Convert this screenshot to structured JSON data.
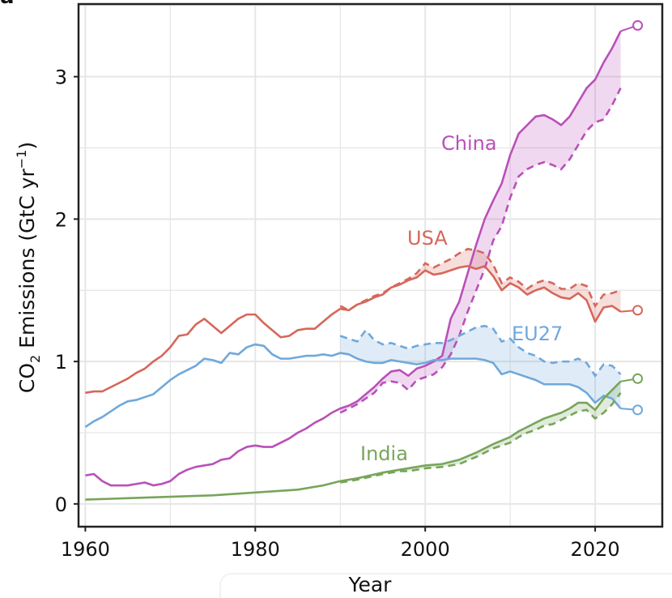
{
  "panel_label": "a",
  "chart_data": {
    "type": "line",
    "title": "",
    "xlabel": "Year",
    "ylabel": "CO₂ Emissions (GtC yr⁻¹)",
    "ylabel_parts": {
      "pre": "CO",
      "sub": "2",
      "mid": " Emissions (GtC yr",
      "sup": "−1",
      "post": ")"
    },
    "xlim": [
      1959.2,
      2027.9
    ],
    "ylim": [
      -0.16,
      3.51
    ],
    "xticks": [
      1960,
      1980,
      2000,
      2020
    ],
    "yticks": [
      0,
      1,
      2,
      3
    ],
    "grid": true,
    "legend": "inline labels",
    "series": [
      {
        "name": "China",
        "color": "#b950b9",
        "solid": {
          "x": [
            1960,
            1961,
            1962,
            1963,
            1964,
            1965,
            1966,
            1967,
            1968,
            1969,
            1970,
            1971,
            1972,
            1973,
            1974,
            1975,
            1976,
            1977,
            1978,
            1979,
            1980,
            1981,
            1982,
            1983,
            1984,
            1985,
            1986,
            1987,
            1988,
            1989,
            1990,
            1991,
            1992,
            1993,
            1994,
            1995,
            1996,
            1997,
            1998,
            1999,
            2000,
            2001,
            2002,
            2003,
            2004,
            2005,
            2006,
            2007,
            2008,
            2009,
            2010,
            2011,
            2012,
            2013,
            2014,
            2015,
            2016,
            2017,
            2018,
            2019,
            2020,
            2021,
            2022,
            2023
          ],
          "y": [
            0.2,
            0.21,
            0.16,
            0.13,
            0.13,
            0.13,
            0.14,
            0.15,
            0.13,
            0.14,
            0.16,
            0.21,
            0.24,
            0.26,
            0.27,
            0.28,
            0.31,
            0.32,
            0.37,
            0.4,
            0.41,
            0.4,
            0.4,
            0.43,
            0.46,
            0.5,
            0.53,
            0.57,
            0.6,
            0.64,
            0.67,
            0.69,
            0.72,
            0.77,
            0.82,
            0.88,
            0.93,
            0.94,
            0.9,
            0.95,
            0.97,
            1.0,
            1.04,
            1.3,
            1.42,
            1.62,
            1.82,
            2.0,
            2.13,
            2.25,
            2.45,
            2.6,
            2.66,
            2.72,
            2.73,
            2.7,
            2.66,
            2.72,
            2.82,
            2.92,
            2.98,
            3.1,
            3.2,
            3.32
          ]
        },
        "dashed": {
          "x": [
            1990,
            1991,
            1992,
            1993,
            1994,
            1995,
            1996,
            1997,
            1998,
            1999,
            2000,
            2001,
            2002,
            2003,
            2004,
            2005,
            2006,
            2007,
            2008,
            2009,
            2010,
            2011,
            2012,
            2013,
            2014,
            2015,
            2016,
            2017,
            2018,
            2019,
            2020,
            2021,
            2022,
            2023
          ],
          "y": [
            0.64,
            0.67,
            0.7,
            0.74,
            0.78,
            0.85,
            0.86,
            0.85,
            0.8,
            0.87,
            0.89,
            0.91,
            0.96,
            1.05,
            1.18,
            1.35,
            1.5,
            1.65,
            1.85,
            1.95,
            2.15,
            2.3,
            2.35,
            2.38,
            2.4,
            2.38,
            2.35,
            2.42,
            2.52,
            2.62,
            2.68,
            2.7,
            2.8,
            2.92
          ]
        },
        "projection": {
          "x": 2025,
          "y": 3.36
        }
      },
      {
        "name": "USA",
        "color": "#d6675b",
        "solid": {
          "x": [
            1960,
            1961,
            1962,
            1963,
            1964,
            1965,
            1966,
            1967,
            1968,
            1969,
            1970,
            1971,
            1972,
            1973,
            1974,
            1975,
            1976,
            1977,
            1978,
            1979,
            1980,
            1981,
            1982,
            1983,
            1984,
            1985,
            1986,
            1987,
            1988,
            1989,
            1990,
            1991,
            1992,
            1993,
            1994,
            1995,
            1996,
            1997,
            1998,
            1999,
            2000,
            2001,
            2002,
            2003,
            2004,
            2005,
            2006,
            2007,
            2008,
            2009,
            2010,
            2011,
            2012,
            2013,
            2014,
            2015,
            2016,
            2017,
            2018,
            2019,
            2020,
            2021,
            2022,
            2023
          ],
          "y": [
            0.78,
            0.79,
            0.79,
            0.82,
            0.85,
            0.88,
            0.92,
            0.95,
            1.0,
            1.04,
            1.1,
            1.18,
            1.19,
            1.26,
            1.3,
            1.25,
            1.2,
            1.25,
            1.3,
            1.33,
            1.33,
            1.27,
            1.22,
            1.17,
            1.18,
            1.22,
            1.23,
            1.23,
            1.28,
            1.33,
            1.37,
            1.36,
            1.4,
            1.42,
            1.45,
            1.47,
            1.52,
            1.54,
            1.57,
            1.59,
            1.64,
            1.61,
            1.62,
            1.64,
            1.66,
            1.67,
            1.65,
            1.67,
            1.6,
            1.5,
            1.55,
            1.52,
            1.47,
            1.5,
            1.52,
            1.48,
            1.45,
            1.44,
            1.48,
            1.43,
            1.28,
            1.38,
            1.39,
            1.35
          ]
        },
        "dashed": {
          "x": [
            1990,
            1991,
            1992,
            1993,
            1994,
            1995,
            1996,
            1997,
            1998,
            1999,
            2000,
            2001,
            2002,
            2003,
            2004,
            2005,
            2006,
            2007,
            2008,
            2009,
            2010,
            2011,
            2012,
            2013,
            2014,
            2015,
            2016,
            2017,
            2018,
            2019,
            2020,
            2021,
            2022,
            2023
          ],
          "y": [
            1.39,
            1.36,
            1.4,
            1.43,
            1.46,
            1.48,
            1.52,
            1.55,
            1.58,
            1.62,
            1.69,
            1.66,
            1.69,
            1.72,
            1.76,
            1.79,
            1.78,
            1.76,
            1.68,
            1.55,
            1.59,
            1.56,
            1.51,
            1.55,
            1.57,
            1.55,
            1.51,
            1.51,
            1.55,
            1.53,
            1.39,
            1.47,
            1.48,
            1.5
          ]
        },
        "projection": {
          "x": 2025,
          "y": 1.36
        }
      },
      {
        "name": "EU27",
        "color": "#6fa8dc",
        "solid": {
          "x": [
            1960,
            1961,
            1962,
            1963,
            1964,
            1965,
            1966,
            1967,
            1968,
            1969,
            1970,
            1971,
            1972,
            1973,
            1974,
            1975,
            1976,
            1977,
            1978,
            1979,
            1980,
            1981,
            1982,
            1983,
            1984,
            1985,
            1986,
            1987,
            1988,
            1989,
            1990,
            1991,
            1992,
            1993,
            1994,
            1995,
            1996,
            1997,
            1998,
            1999,
            2000,
            2001,
            2002,
            2003,
            2004,
            2005,
            2006,
            2007,
            2008,
            2009,
            2010,
            2011,
            2012,
            2013,
            2014,
            2015,
            2016,
            2017,
            2018,
            2019,
            2020,
            2021,
            2022,
            2023
          ],
          "y": [
            0.54,
            0.58,
            0.61,
            0.65,
            0.69,
            0.72,
            0.73,
            0.75,
            0.77,
            0.82,
            0.87,
            0.91,
            0.94,
            0.97,
            1.02,
            1.01,
            0.99,
            1.06,
            1.05,
            1.1,
            1.12,
            1.11,
            1.05,
            1.02,
            1.02,
            1.03,
            1.04,
            1.04,
            1.05,
            1.04,
            1.06,
            1.05,
            1.02,
            1.0,
            0.99,
            0.99,
            1.01,
            1.0,
            0.99,
            0.98,
            0.99,
            1.01,
            1.01,
            1.02,
            1.02,
            1.02,
            1.02,
            1.01,
            0.99,
            0.91,
            0.93,
            0.91,
            0.89,
            0.87,
            0.84,
            0.84,
            0.84,
            0.84,
            0.82,
            0.78,
            0.71,
            0.76,
            0.74,
            0.67
          ]
        },
        "dashed": {
          "x": [
            1990,
            1991,
            1992,
            1993,
            1994,
            1995,
            1996,
            1997,
            1998,
            1999,
            2000,
            2001,
            2002,
            2003,
            2004,
            2005,
            2006,
            2007,
            2008,
            2009,
            2010,
            2011,
            2012,
            2013,
            2014,
            2015,
            2016,
            2017,
            2018,
            2019,
            2020,
            2021,
            2022,
            2023
          ],
          "y": [
            1.18,
            1.16,
            1.14,
            1.22,
            1.15,
            1.12,
            1.13,
            1.11,
            1.09,
            1.11,
            1.12,
            1.13,
            1.13,
            1.15,
            1.18,
            1.21,
            1.24,
            1.25,
            1.23,
            1.14,
            1.16,
            1.1,
            1.06,
            1.04,
            1.0,
            0.99,
            1.0,
            1.0,
            1.02,
            0.99,
            0.9,
            0.98,
            0.97,
            0.91
          ]
        },
        "projection": {
          "x": 2025,
          "y": 0.66
        }
      },
      {
        "name": "India",
        "color": "#77a55a",
        "solid": {
          "x": [
            1960,
            1965,
            1970,
            1975,
            1980,
            1985,
            1988,
            1990,
            1992,
            1995,
            1998,
            2000,
            2002,
            2004,
            2006,
            2008,
            2010,
            2011,
            2012,
            2013,
            2014,
            2015,
            2016,
            2017,
            2018,
            2019,
            2020,
            2021,
            2022,
            2023
          ],
          "y": [
            0.03,
            0.04,
            0.05,
            0.06,
            0.08,
            0.1,
            0.13,
            0.16,
            0.18,
            0.22,
            0.25,
            0.27,
            0.28,
            0.31,
            0.36,
            0.42,
            0.47,
            0.51,
            0.54,
            0.57,
            0.6,
            0.62,
            0.64,
            0.67,
            0.71,
            0.71,
            0.66,
            0.74,
            0.8,
            0.86
          ]
        },
        "dashed": {
          "x": [
            1990,
            1992,
            1995,
            1997,
            1998,
            2000,
            2002,
            2004,
            2006,
            2008,
            2010,
            2011,
            2012,
            2013,
            2014,
            2015,
            2016,
            2017,
            2018,
            2019,
            2020,
            2021,
            2022,
            2023
          ],
          "y": [
            0.15,
            0.17,
            0.21,
            0.23,
            0.23,
            0.25,
            0.26,
            0.28,
            0.33,
            0.39,
            0.43,
            0.47,
            0.5,
            0.52,
            0.55,
            0.56,
            0.59,
            0.62,
            0.65,
            0.66,
            0.6,
            0.64,
            0.7,
            0.78
          ]
        },
        "projection": {
          "x": 2025,
          "y": 0.88
        }
      }
    ]
  }
}
